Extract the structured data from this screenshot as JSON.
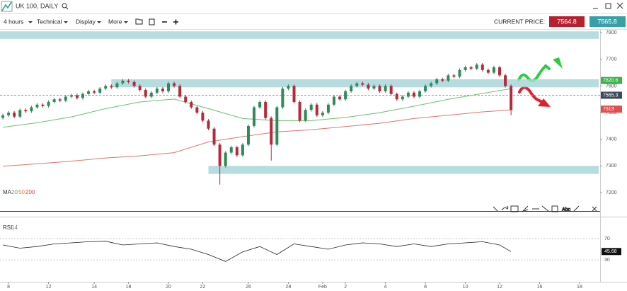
{
  "toolbar": {
    "title": "UK 100, DAILY",
    "menus": [
      "4 hours",
      "Technical",
      "Display",
      "More"
    ],
    "current_price_label": "CURRENT PRICE:",
    "sell": "7564.8",
    "buy": "7565.8"
  },
  "chart_data": {
    "type": "candlestick",
    "open": [
      7480,
      7490,
      7500,
      7485,
      7510,
      7505,
      7520,
      7530,
      7525,
      7540,
      7550,
      7545,
      7560,
      7565,
      7555,
      7570,
      7580,
      7575,
      7590,
      7600,
      7595,
      7610,
      7620,
      7615,
      7600,
      7585,
      7560,
      7575,
      7590,
      7580,
      7610,
      7600,
      7560,
      7540,
      7520,
      7500,
      7470,
      7440,
      7380,
      7300,
      7350,
      7370,
      7340,
      7380,
      7450,
      7520,
      7540,
      7480,
      7380,
      7520,
      7590,
      7600,
      7540,
      7470,
      7510,
      7530,
      7490,
      7500,
      7530,
      7560,
      7550,
      7580,
      7600,
      7610,
      7605,
      7590,
      7600,
      7580,
      7600,
      7570,
      7550,
      7560,
      7575,
      7560,
      7580,
      7600,
      7610,
      7625,
      7620,
      7640,
      7635,
      7660,
      7670,
      7665,
      7680,
      7660,
      7650,
      7670,
      7640,
      7600
    ],
    "high": [
      7496,
      7506,
      7506,
      7516,
      7516,
      7526,
      7536,
      7536,
      7546,
      7556,
      7556,
      7566,
      7571,
      7571,
      7576,
      7586,
      7586,
      7596,
      7606,
      7606,
      7616,
      7626,
      7626,
      7621,
      7606,
      7591,
      7581,
      7596,
      7596,
      7616,
      7616,
      7606,
      7566,
      7546,
      7526,
      7506,
      7476,
      7446,
      7386,
      7356,
      7376,
      7376,
      7386,
      7456,
      7526,
      7546,
      7546,
      7486,
      7526,
      7596,
      7606,
      7606,
      7546,
      7516,
      7536,
      7536,
      7506,
      7536,
      7566,
      7566,
      7586,
      7606,
      7616,
      7616,
      7611,
      7606,
      7606,
      7606,
      7606,
      7576,
      7566,
      7581,
      7581,
      7586,
      7606,
      7616,
      7631,
      7631,
      7646,
      7646,
      7666,
      7676,
      7676,
      7686,
      7686,
      7666,
      7676,
      7676,
      7646,
      7606
    ],
    "low": [
      7474,
      7484,
      7479,
      7479,
      7499,
      7499,
      7514,
      7519,
      7519,
      7534,
      7539,
      7539,
      7554,
      7549,
      7549,
      7564,
      7569,
      7569,
      7584,
      7589,
      7589,
      7604,
      7609,
      7594,
      7579,
      7554,
      7554,
      7569,
      7574,
      7574,
      7594,
      7554,
      7534,
      7514,
      7494,
      7464,
      7434,
      7374,
      7230,
      7294,
      7344,
      7334,
      7334,
      7374,
      7444,
      7514,
      7474,
      7320,
      7374,
      7514,
      7584,
      7534,
      7464,
      7464,
      7504,
      7484,
      7484,
      7494,
      7524,
      7544,
      7544,
      7574,
      7594,
      7599,
      7584,
      7584,
      7574,
      7574,
      7564,
      7544,
      7544,
      7554,
      7554,
      7554,
      7574,
      7594,
      7604,
      7614,
      7614,
      7629,
      7629,
      7654,
      7659,
      7659,
      7654,
      7644,
      7644,
      7634,
      7594,
      7490
    ],
    "close": [
      7490,
      7500,
      7485,
      7510,
      7505,
      7520,
      7530,
      7525,
      7540,
      7550,
      7545,
      7560,
      7565,
      7555,
      7570,
      7580,
      7575,
      7590,
      7600,
      7595,
      7610,
      7620,
      7615,
      7600,
      7585,
      7560,
      7575,
      7590,
      7580,
      7610,
      7600,
      7560,
      7540,
      7520,
      7500,
      7470,
      7440,
      7380,
      7300,
      7350,
      7370,
      7340,
      7380,
      7450,
      7520,
      7540,
      7480,
      7380,
      7520,
      7590,
      7600,
      7540,
      7470,
      7510,
      7530,
      7490,
      7500,
      7530,
      7560,
      7550,
      7580,
      7600,
      7610,
      7605,
      7590,
      7600,
      7580,
      7600,
      7570,
      7550,
      7560,
      7575,
      7560,
      7580,
      7600,
      7610,
      7625,
      7620,
      7640,
      7635,
      7660,
      7670,
      7665,
      7680,
      7660,
      7650,
      7670,
      7640,
      7600,
      7510
    ],
    "colors": {
      "up": "#2f8a57",
      "down": "#b52a3a"
    },
    "xlim": [
      -0.5,
      104.6
    ],
    "ylim": [
      7131,
      7811
    ],
    "yticks": [
      7800,
      7700,
      7600,
      7500,
      7400,
      7300,
      7200
    ],
    "xticks": [
      {
        "value": 1,
        "label": "8"
      },
      {
        "value": 8,
        "label": "12"
      },
      {
        "value": 16,
        "label": "14"
      },
      {
        "value": 22,
        "label": "18"
      },
      {
        "value": 29,
        "label": "20"
      },
      {
        "value": 35,
        "label": "22"
      },
      {
        "value": 43,
        "label": "26"
      },
      {
        "value": 50,
        "label": "28"
      },
      {
        "value": 56,
        "label": "Feb"
      },
      {
        "value": 60,
        "label": "2"
      },
      {
        "value": 67,
        "label": "4"
      },
      {
        "value": 74,
        "label": "8"
      },
      {
        "value": 81,
        "label": "10"
      },
      {
        "value": 87,
        "label": "12"
      },
      {
        "value": 94,
        "label": "16"
      },
      {
        "value": 101,
        "label": "18"
      }
    ],
    "indicator": {
      "name": "MA",
      "periods": [
        20,
        50,
        200
      ],
      "period_colors": [
        "#4caf50",
        "#e07b39",
        "#c94b4b"
      ]
    },
    "moving_averages": [
      {
        "color": "#6cc070",
        "x": [
          0,
          6,
          12,
          18,
          24,
          30,
          36,
          42,
          48,
          54,
          60,
          66,
          72,
          78,
          84,
          89
        ],
        "values": [
          7445,
          7462,
          7484,
          7515,
          7540,
          7551,
          7515,
          7478,
          7470,
          7470,
          7482,
          7500,
          7524,
          7550,
          7572,
          7590
        ]
      },
      {
        "color": "#d9776e",
        "x": [
          0,
          6,
          12,
          18,
          24,
          30,
          36,
          42,
          48,
          54,
          60,
          66,
          72,
          78,
          84,
          89
        ],
        "values": [
          7299,
          7308,
          7318,
          7330,
          7338,
          7350,
          7390,
          7410,
          7428,
          7436,
          7448,
          7460,
          7478,
          7490,
          7503,
          7510
        ]
      }
    ],
    "zones": [
      {
        "from": 7777,
        "to": 7805,
        "start": -0.5,
        "color": "#a8d6d9"
      },
      {
        "from": 7595,
        "to": 7625,
        "start": 19,
        "color": "#a8d6d9"
      },
      {
        "from": 7270,
        "to": 7300,
        "start": 36,
        "color": "#a8d6d9"
      }
    ],
    "price_labels": [
      7620.6,
      7565.3,
      7513
    ],
    "price_label_colors": [
      "#3cb44b",
      "#3d4a5c",
      "#e04e4e"
    ]
  },
  "rsi": {
    "name": "RSI",
    "period": 14,
    "color": "#222222",
    "ylim": [
      -11,
      111
    ],
    "yticks": [
      70,
      30
    ],
    "x": [
      0,
      3,
      6,
      9,
      12,
      15,
      18,
      21,
      24,
      27,
      30,
      33,
      36,
      39,
      42,
      45,
      48,
      51,
      54,
      57,
      60,
      63,
      66,
      69,
      72,
      75,
      78,
      81,
      84,
      87,
      89
    ],
    "values": [
      58,
      52,
      55,
      60,
      62,
      64,
      65,
      58,
      60,
      62,
      55,
      50,
      40,
      27,
      45,
      55,
      40,
      60,
      55,
      50,
      58,
      62,
      60,
      55,
      60,
      55,
      60,
      62,
      64,
      58,
      45.68
    ]
  }
}
